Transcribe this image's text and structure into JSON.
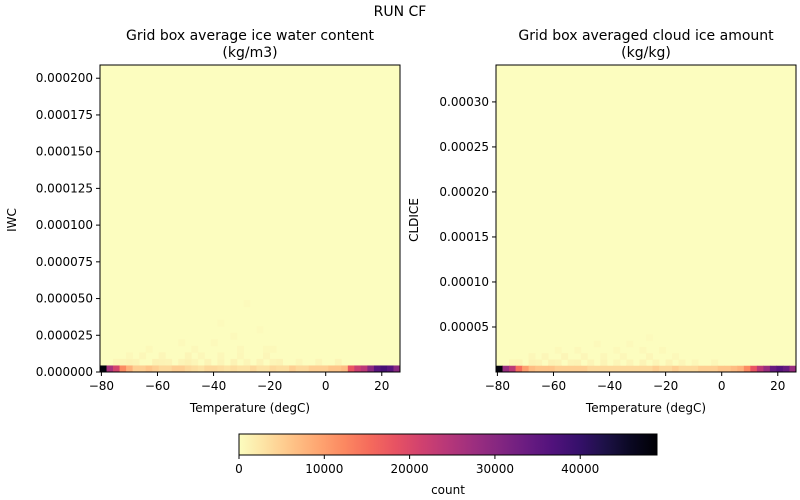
{
  "figure": {
    "suptitle": "RUN CF"
  },
  "colormap": {
    "name": "magma_r",
    "stops": [
      "#fcfdbf",
      "#fde2a3",
      "#fec488",
      "#fea772",
      "#fc8961",
      "#f56b5c",
      "#e75263",
      "#d0416f",
      "#b73779",
      "#9c2e7f",
      "#832681",
      "#6a1c81",
      "#51127c",
      "#36106b",
      "#1d1147",
      "#0a0822",
      "#000004"
    ]
  },
  "colorbar": {
    "label": "count",
    "range": [
      0,
      49000
    ],
    "ticks": [
      0,
      10000,
      20000,
      30000,
      40000
    ],
    "tick_labels": [
      "0",
      "10000",
      "20000",
      "30000",
      "40000"
    ]
  },
  "chart_data": [
    {
      "type": "heatmap",
      "title_line1": "Grid box average ice water content",
      "title_line2": "(kg/m3)",
      "xlabel": "Temperature (degC)",
      "ylabel": "IWC",
      "xlim": [
        -80.5,
        26.5
      ],
      "ylim": [
        0,
        0.000209
      ],
      "x_ticks": [
        -80,
        -60,
        -40,
        -20,
        0,
        20
      ],
      "x_tick_labels": [
        "−80",
        "−60",
        "−40",
        "−20",
        "0",
        "20"
      ],
      "y_ticks": [
        0,
        2.5e-05,
        5e-05,
        7.5e-05,
        0.0001,
        0.000125,
        0.00015,
        0.000175,
        0.0002
      ],
      "y_tick_labels": [
        "0.000000",
        "0.000025",
        "0.000050",
        "0.000075",
        "0.000100",
        "0.000125",
        "0.000150",
        "0.000175",
        "0.000200"
      ],
      "x_bin_edges": [
        -80.5,
        26.5
      ],
      "n_x_bins": 46,
      "y_bin_edges": [
        0,
        0.000209
      ],
      "n_y_bins": 47,
      "bottom_row_counts": [
        48000,
        26000,
        21000,
        12000,
        8000,
        5000,
        5000,
        6000,
        5000,
        4000,
        4000,
        5000,
        5000,
        4000,
        3500,
        3000,
        4000,
        4000,
        3500,
        3000,
        3500,
        3000,
        3000,
        4000,
        3000,
        3000,
        4000,
        3500,
        3500,
        5000,
        4000,
        4000,
        5000,
        5000,
        5000,
        6000,
        6000,
        7000,
        18000,
        22000,
        24000,
        30000,
        36000,
        38000,
        36000,
        30000
      ],
      "faint_cells": [
        [
          2,
          1,
          800
        ],
        [
          3,
          1,
          900
        ],
        [
          4,
          1,
          1100
        ],
        [
          5,
          1,
          900
        ],
        [
          8,
          1,
          1200
        ],
        [
          9,
          1,
          1100
        ],
        [
          10,
          1,
          1000
        ],
        [
          12,
          1,
          900
        ],
        [
          13,
          1,
          1300
        ],
        [
          14,
          1,
          800
        ],
        [
          16,
          1,
          1000
        ],
        [
          18,
          1,
          900
        ],
        [
          20,
          1,
          1100
        ],
        [
          22,
          1,
          800
        ],
        [
          24,
          1,
          1000
        ],
        [
          26,
          1,
          900
        ],
        [
          27,
          1,
          1100
        ],
        [
          30,
          1,
          700
        ],
        [
          33,
          1,
          800
        ],
        [
          36,
          1,
          900
        ],
        [
          6,
          2,
          700
        ],
        [
          9,
          2,
          800
        ],
        [
          13,
          2,
          900
        ],
        [
          15,
          2,
          700
        ],
        [
          18,
          2,
          700
        ],
        [
          21,
          2,
          700
        ],
        [
          25,
          2,
          800
        ],
        [
          14,
          3,
          600
        ],
        [
          21,
          3,
          600
        ],
        [
          26,
          3,
          500
        ],
        [
          17,
          4,
          450
        ],
        [
          25,
          3,
          500
        ],
        [
          20,
          5,
          400
        ],
        [
          22,
          10,
          350
        ],
        [
          24,
          6,
          350
        ],
        [
          18,
          7,
          300
        ],
        [
          12,
          4,
          400
        ],
        [
          7,
          3,
          500
        ],
        [
          4,
          2,
          600
        ]
      ]
    },
    {
      "type": "heatmap",
      "title_line1": "Grid box averaged cloud ice amount",
      "title_line2": "(kg/kg)",
      "xlabel": "Temperature (degC)",
      "ylabel": "CLDICE",
      "xlim": [
        -80.5,
        26.5
      ],
      "ylim": [
        0,
        0.000341
      ],
      "x_ticks": [
        -80,
        -60,
        -40,
        -20,
        0,
        20
      ],
      "x_tick_labels": [
        "−80",
        "−60",
        "−40",
        "−20",
        "0",
        "20"
      ],
      "y_ticks": [
        5e-05,
        0.0001,
        0.00015,
        0.0002,
        0.00025,
        0.0003
      ],
      "y_tick_labels": [
        "0.00005",
        "0.00010",
        "0.00015",
        "0.00020",
        "0.00025",
        "0.00030"
      ],
      "x_bin_edges": [
        -80.5,
        26.5
      ],
      "n_x_bins": 46,
      "y_bin_edges": [
        0,
        0.000341
      ],
      "n_y_bins": 49,
      "bottom_row_counts": [
        48000,
        28000,
        24000,
        15000,
        10000,
        7000,
        6000,
        6000,
        6000,
        5000,
        5000,
        5000,
        5000,
        5000,
        4000,
        4000,
        4000,
        4000,
        4000,
        4000,
        4000,
        4000,
        4000,
        4000,
        5000,
        4000,
        4000,
        5000,
        4000,
        4000,
        4000,
        5000,
        5000,
        5000,
        6000,
        6000,
        7000,
        8000,
        12000,
        18000,
        24000,
        28000,
        34000,
        36000,
        34000,
        28000
      ],
      "faint_cells": [
        [
          2,
          1,
          900
        ],
        [
          3,
          1,
          1000
        ],
        [
          5,
          1,
          1100
        ],
        [
          6,
          1,
          900
        ],
        [
          8,
          1,
          1200
        ],
        [
          9,
          1,
          1000
        ],
        [
          11,
          1,
          1000
        ],
        [
          12,
          1,
          1100
        ],
        [
          14,
          1,
          900
        ],
        [
          16,
          1,
          1000
        ],
        [
          18,
          1,
          800
        ],
        [
          20,
          1,
          900
        ],
        [
          22,
          1,
          1000
        ],
        [
          24,
          1,
          900
        ],
        [
          26,
          1,
          1000
        ],
        [
          28,
          1,
          800
        ],
        [
          30,
          1,
          700
        ],
        [
          33,
          1,
          700
        ],
        [
          7,
          2,
          800
        ],
        [
          10,
          2,
          900
        ],
        [
          13,
          2,
          800
        ],
        [
          16,
          2,
          700
        ],
        [
          19,
          2,
          700
        ],
        [
          23,
          2,
          800
        ],
        [
          27,
          2,
          600
        ],
        [
          12,
          3,
          600
        ],
        [
          18,
          3,
          500
        ],
        [
          22,
          3,
          600
        ],
        [
          25,
          3,
          500
        ],
        [
          15,
          4,
          450
        ],
        [
          20,
          4,
          400
        ],
        [
          23,
          5,
          350
        ],
        [
          9,
          3,
          500
        ],
        [
          5,
          2,
          700
        ]
      ]
    }
  ]
}
